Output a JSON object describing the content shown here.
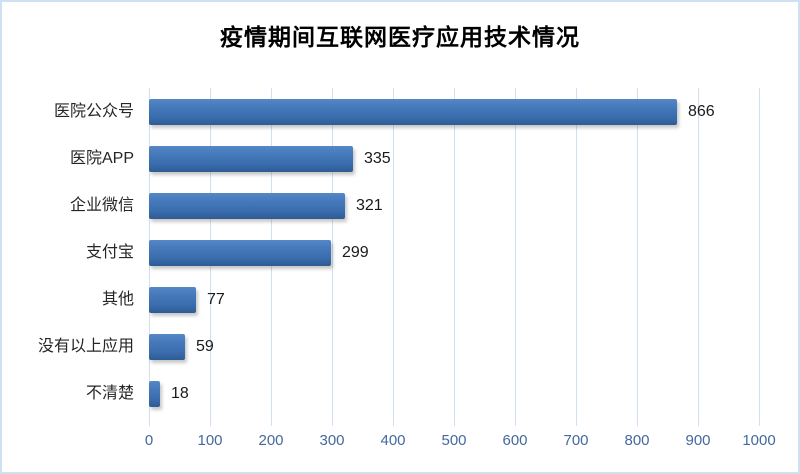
{
  "chart_data": {
    "type": "bar",
    "orientation": "horizontal",
    "title": "疫情期间互联网医疗应用技术情况",
    "categories": [
      "医院公众号",
      "医院APP",
      "企业微信",
      "支付宝",
      "其他",
      "没有以上应用",
      "不清楚"
    ],
    "values": [
      866,
      335,
      321,
      299,
      77,
      59,
      18
    ],
    "xlabel": "",
    "ylabel": "",
    "xlim": [
      0,
      1000
    ],
    "x_ticks": [
      0,
      100,
      200,
      300,
      400,
      500,
      600,
      700,
      800,
      900,
      1000
    ],
    "grid": true,
    "data_labels": true,
    "legend": "none",
    "colors": {
      "bar_gradient_top": "#5687c7",
      "bar_gradient_bottom": "#2e5b93",
      "gridline": "#cfe0f2",
      "tick_label": "#44699e",
      "category_label": "#262626",
      "value_label": "#1a1a1a",
      "chart_border": "#cfe0f2",
      "background": "#ffffff"
    }
  }
}
